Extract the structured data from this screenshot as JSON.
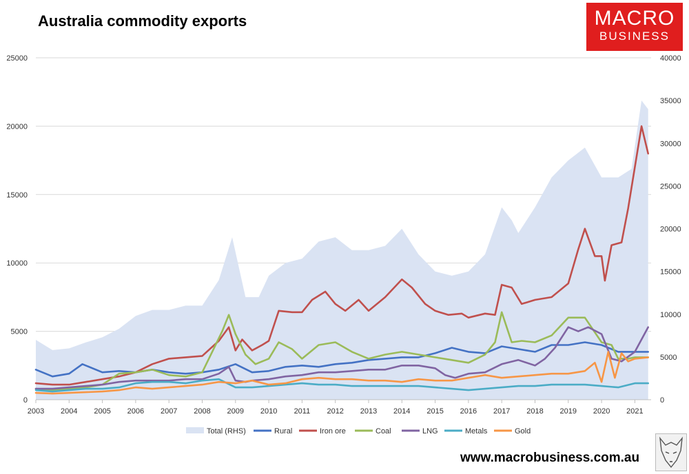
{
  "title": "Australia commodity exports",
  "logo": {
    "line1": "MACRO",
    "line2": "BUSINESS"
  },
  "url": "www.macrobusiness.com.au",
  "colors": {
    "total": "#dae3f3",
    "rural": "#4472c4",
    "iron_ore": "#c0504d",
    "coal": "#9bbb59",
    "lng": "#8064a2",
    "metals": "#4bacc6",
    "gold": "#f79646",
    "logo_bg": "#e01e1e"
  },
  "chart_data": {
    "type": "line",
    "title": "Australia commodity exports",
    "x_ticks": [
      "2003",
      "2004",
      "2005",
      "2006",
      "2007",
      "2008",
      "2009",
      "2010",
      "2011",
      "2012",
      "2013",
      "2014",
      "2015",
      "2016",
      "2017",
      "2018",
      "2019",
      "2020",
      "2021"
    ],
    "y_left": {
      "min": 0,
      "max": 25000,
      "ticks": [
        "0",
        "5000",
        "10000",
        "15000",
        "20000",
        "25000"
      ]
    },
    "y_right": {
      "min": 0,
      "max": 40000,
      "ticks": [
        "0",
        "5000",
        "10000",
        "15000",
        "20000",
        "25000",
        "30000",
        "35000",
        "40000"
      ]
    },
    "grid": "horizontal",
    "legend_position": "bottom",
    "series": [
      {
        "name": "Total (RHS)",
        "type": "area",
        "axis": "right",
        "x": [
          2003.0,
          2003.5,
          2004.0,
          2004.5,
          2005.0,
          2005.5,
          2006.0,
          2006.5,
          2007.0,
          2007.5,
          2008.0,
          2008.5,
          2008.9,
          2009.3,
          2009.7,
          2010.0,
          2010.5,
          2011.0,
          2011.5,
          2012.0,
          2012.5,
          2013.0,
          2013.5,
          2014.0,
          2014.5,
          2015.0,
          2015.5,
          2016.0,
          2016.5,
          2017.0,
          2017.3,
          2017.5,
          2018.0,
          2018.5,
          2019.0,
          2019.5,
          2020.0,
          2020.5,
          2020.9,
          2021.2,
          2021.4
        ],
        "values": [
          7000,
          5800,
          6000,
          6700,
          7300,
          8300,
          9800,
          10500,
          10500,
          11000,
          11000,
          14000,
          19000,
          12000,
          12000,
          14500,
          16000,
          16500,
          18500,
          19000,
          17500,
          17500,
          18000,
          20000,
          17000,
          15000,
          14500,
          15000,
          17000,
          22500,
          21000,
          19500,
          22500,
          26000,
          28000,
          29500,
          26000,
          26000,
          27000,
          35000,
          34000
        ]
      },
      {
        "name": "Rural",
        "type": "line",
        "axis": "left",
        "x": [
          2003.0,
          2003.5,
          2004.0,
          2004.4,
          2005.0,
          2005.5,
          2006.0,
          2006.5,
          2007.0,
          2007.5,
          2008.0,
          2008.5,
          2009.0,
          2009.5,
          2010.0,
          2010.5,
          2011.0,
          2011.5,
          2012.0,
          2012.5,
          2013.0,
          2013.5,
          2014.0,
          2014.5,
          2015.0,
          2015.5,
          2016.0,
          2016.5,
          2017.0,
          2017.5,
          2018.0,
          2018.5,
          2019.0,
          2019.5,
          2020.0,
          2020.5,
          2021.0,
          2021.4
        ],
        "values": [
          2200,
          1700,
          1900,
          2600,
          2000,
          2100,
          2000,
          2200,
          2000,
          1900,
          2000,
          2200,
          2600,
          2000,
          2100,
          2400,
          2500,
          2400,
          2600,
          2700,
          2900,
          3000,
          3100,
          3100,
          3400,
          3800,
          3500,
          3400,
          3900,
          3700,
          3500,
          4000,
          4000,
          4200,
          4000,
          3500,
          3500,
          3500
        ]
      },
      {
        "name": "Iron ore",
        "type": "line",
        "axis": "left",
        "x": [
          2003.0,
          2003.5,
          2004.0,
          2004.5,
          2005.0,
          2005.5,
          2006.0,
          2006.5,
          2007.0,
          2007.5,
          2008.0,
          2008.5,
          2008.8,
          2009.0,
          2009.2,
          2009.5,
          2009.8,
          2010.0,
          2010.3,
          2010.7,
          2011.0,
          2011.3,
          2011.7,
          2012.0,
          2012.3,
          2012.7,
          2013.0,
          2013.5,
          2014.0,
          2014.3,
          2014.7,
          2015.0,
          2015.4,
          2015.8,
          2016.0,
          2016.5,
          2016.8,
          2017.0,
          2017.3,
          2017.6,
          2018.0,
          2018.5,
          2019.0,
          2019.3,
          2019.5,
          2019.8,
          2020.0,
          2020.1,
          2020.3,
          2020.6,
          2020.8,
          2021.0,
          2021.2,
          2021.4
        ],
        "values": [
          1200,
          1100,
          1100,
          1300,
          1500,
          1700,
          2000,
          2600,
          3000,
          3100,
          3200,
          4300,
          5300,
          3600,
          4400,
          3600,
          4000,
          4300,
          6500,
          6400,
          6400,
          7300,
          7900,
          7000,
          6500,
          7300,
          6500,
          7500,
          8800,
          8200,
          7000,
          6500,
          6200,
          6300,
          6000,
          6300,
          6200,
          8400,
          8200,
          7000,
          7300,
          7500,
          8500,
          11000,
          12500,
          10500,
          10500,
          8700,
          11300,
          11500,
          14000,
          17000,
          20000,
          18000
        ]
      },
      {
        "name": "Coal",
        "type": "line",
        "axis": "left",
        "x": [
          2003.0,
          2003.5,
          2004.0,
          2004.5,
          2005.0,
          2005.5,
          2006.0,
          2006.5,
          2007.0,
          2007.5,
          2008.0,
          2008.3,
          2008.6,
          2008.8,
          2009.0,
          2009.3,
          2009.6,
          2010.0,
          2010.3,
          2010.7,
          2011.0,
          2011.5,
          2012.0,
          2012.5,
          2013.0,
          2013.5,
          2014.0,
          2014.5,
          2015.0,
          2015.5,
          2016.0,
          2016.5,
          2016.8,
          2017.0,
          2017.3,
          2017.6,
          2018.0,
          2018.5,
          2019.0,
          2019.5,
          2020.0,
          2020.3,
          2020.5,
          2020.8,
          2021.0,
          2021.4
        ],
        "values": [
          800,
          700,
          800,
          900,
          1100,
          1900,
          2000,
          2200,
          1800,
          1700,
          2000,
          3500,
          5000,
          6200,
          4800,
          3300,
          2600,
          3000,
          4200,
          3700,
          3000,
          4000,
          4200,
          3500,
          3000,
          3300,
          3500,
          3300,
          3100,
          2900,
          2700,
          3300,
          4200,
          6400,
          4200,
          4300,
          4200,
          4700,
          6000,
          6000,
          4200,
          4000,
          3000,
          3000,
          3100,
          3100
        ]
      },
      {
        "name": "LNG",
        "type": "line",
        "axis": "left",
        "x": [
          2003.0,
          2003.5,
          2004.0,
          2004.5,
          2005.0,
          2005.5,
          2006.0,
          2006.5,
          2007.0,
          2007.5,
          2008.0,
          2008.5,
          2008.8,
          2009.0,
          2009.3,
          2009.5,
          2010.0,
          2010.5,
          2011.0,
          2011.5,
          2012.0,
          2012.5,
          2013.0,
          2013.5,
          2014.0,
          2014.5,
          2015.0,
          2015.3,
          2015.6,
          2016.0,
          2016.5,
          2017.0,
          2017.5,
          2018.0,
          2018.3,
          2018.6,
          2019.0,
          2019.3,
          2019.6,
          2020.0,
          2020.3,
          2020.6,
          2021.0,
          2021.4
        ],
        "values": [
          800,
          800,
          900,
          1000,
          1100,
          1300,
          1400,
          1400,
          1400,
          1500,
          1500,
          1900,
          2400,
          1400,
          1300,
          1400,
          1500,
          1700,
          1800,
          2000,
          2000,
          2100,
          2200,
          2200,
          2500,
          2500,
          2300,
          1800,
          1600,
          1900,
          2000,
          2600,
          2900,
          2500,
          3000,
          3800,
          5300,
          5000,
          5300,
          4800,
          3000,
          2800,
          3500,
          5300
        ]
      },
      {
        "name": "Metals",
        "type": "line",
        "axis": "left",
        "x": [
          2003.0,
          2003.5,
          2004.0,
          2004.5,
          2005.0,
          2005.5,
          2006.0,
          2006.5,
          2007.0,
          2007.5,
          2008.0,
          2008.5,
          2009.0,
          2009.5,
          2010.0,
          2010.5,
          2011.0,
          2011.5,
          2012.0,
          2012.5,
          2013.0,
          2013.5,
          2014.0,
          2014.5,
          2015.0,
          2015.5,
          2016.0,
          2016.5,
          2017.0,
          2017.5,
          2018.0,
          2018.5,
          2019.0,
          2019.5,
          2020.0,
          2020.5,
          2021.0,
          2021.4
        ],
        "values": [
          700,
          600,
          700,
          800,
          800,
          900,
          1200,
          1300,
          1300,
          1200,
          1400,
          1500,
          900,
          900,
          1000,
          1100,
          1200,
          1100,
          1100,
          1000,
          1000,
          1000,
          1000,
          1000,
          900,
          800,
          700,
          800,
          900,
          1000,
          1000,
          1100,
          1100,
          1100,
          1000,
          900,
          1200,
          1200
        ]
      },
      {
        "name": "Gold",
        "type": "line",
        "axis": "left",
        "x": [
          2003.0,
          2003.5,
          2004.0,
          2004.5,
          2005.0,
          2005.5,
          2006.0,
          2006.5,
          2007.0,
          2007.5,
          2008.0,
          2008.5,
          2009.0,
          2009.5,
          2010.0,
          2010.5,
          2011.0,
          2011.5,
          2012.0,
          2012.5,
          2013.0,
          2013.5,
          2014.0,
          2014.5,
          2015.0,
          2015.5,
          2016.0,
          2016.5,
          2017.0,
          2017.5,
          2018.0,
          2018.5,
          2019.0,
          2019.5,
          2019.8,
          2020.0,
          2020.2,
          2020.4,
          2020.6,
          2020.8,
          2021.0,
          2021.4
        ],
        "values": [
          500,
          450,
          500,
          550,
          600,
          700,
          900,
          800,
          900,
          1000,
          1100,
          1300,
          1200,
          1400,
          1100,
          1200,
          1500,
          1600,
          1500,
          1500,
          1400,
          1400,
          1300,
          1500,
          1400,
          1400,
          1600,
          1800,
          1600,
          1700,
          1800,
          1900,
          1900,
          2100,
          2700,
          1300,
          3500,
          1600,
          3400,
          2800,
          3000,
          3100
        ]
      }
    ]
  }
}
